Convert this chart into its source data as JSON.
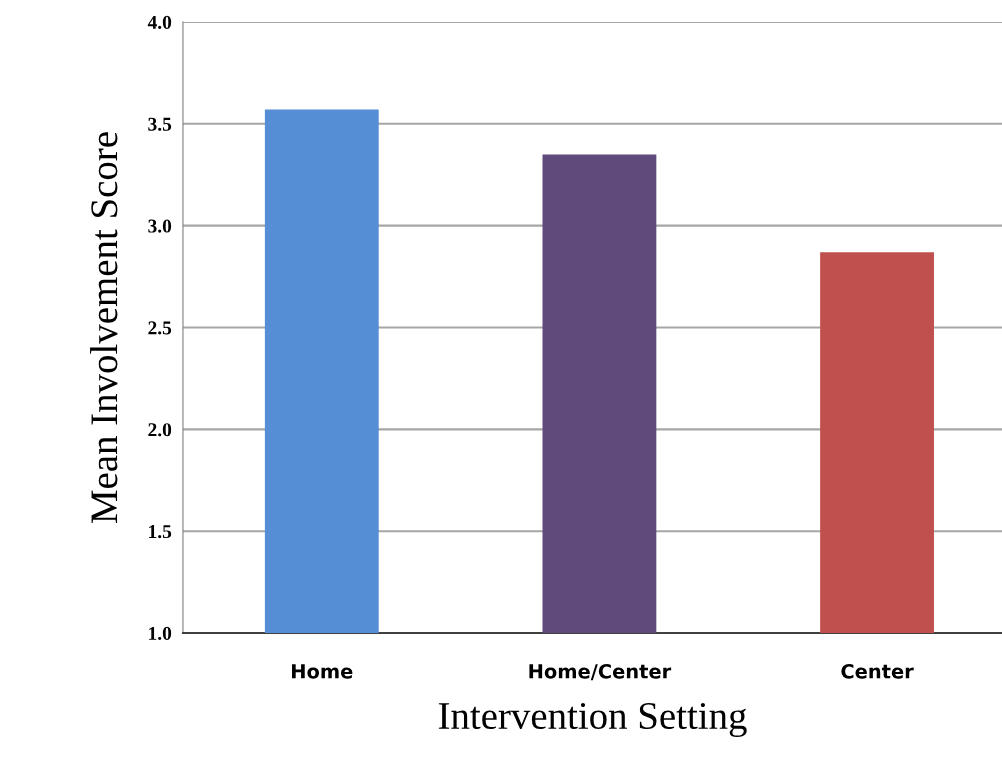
{
  "chart_data": {
    "type": "bar",
    "xlabel": "Intervention Setting",
    "ylabel": "Mean Involvement Score",
    "categories": [
      "Home",
      "Home/Center",
      "Center"
    ],
    "values": [
      3.57,
      3.35,
      2.87
    ],
    "colors": [
      "#558ed5",
      "#604a7b",
      "#c0504d"
    ],
    "ylim": [
      1.0,
      4.0
    ],
    "yticks": [
      {
        "value": 1.0,
        "label": "1.0"
      },
      {
        "value": 1.5,
        "label": "1.5"
      },
      {
        "value": 2.0,
        "label": "2.0"
      },
      {
        "value": 2.5,
        "label": "2.5"
      },
      {
        "value": 3.0,
        "label": "3.0"
      },
      {
        "value": 3.5,
        "label": "3.5"
      },
      {
        "value": 4.0,
        "label": "4.0"
      }
    ],
    "grid": "y"
  }
}
